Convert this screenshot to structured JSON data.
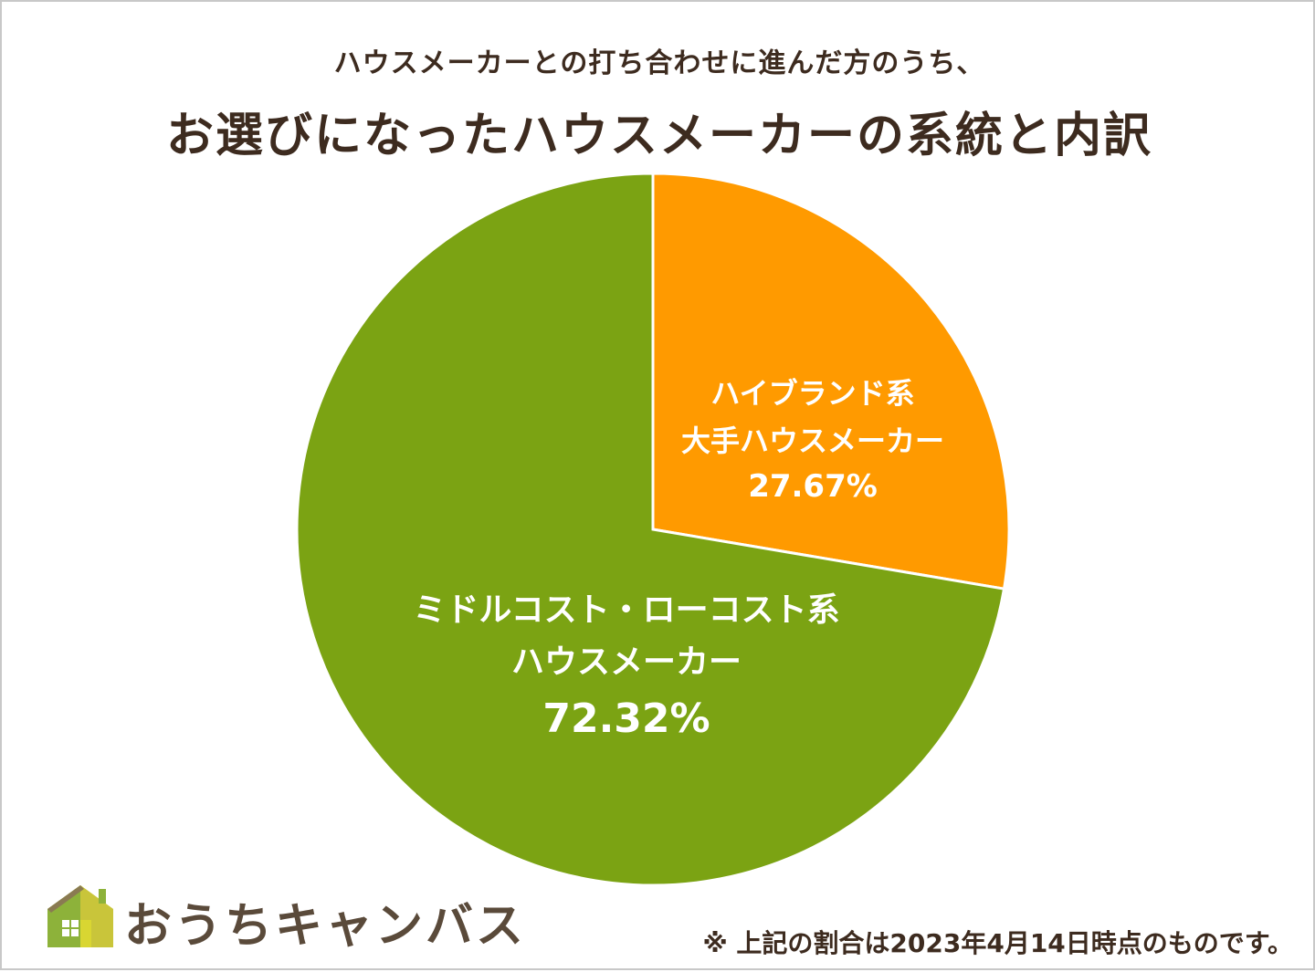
{
  "header": {
    "subtitle": "ハウスメーカーとの打ち合わせに進んだ方のうち、",
    "title": "お選びになったハウスメーカーの系統と内訳"
  },
  "chart_data": {
    "type": "pie",
    "title": "お選びになったハウスメーカーの系統と内訳",
    "subtitle": "ハウスメーカーとの打ち合わせに進んだ方のうち、",
    "slices": [
      {
        "label_lines": [
          "ハイブランド系",
          "大手ハウスメーカー"
        ],
        "percent_label": "27.67%",
        "value": 27.67,
        "color": "#ff9a00"
      },
      {
        "label_lines": [
          "ミドルコスト・ローコスト系",
          "ハウスメーカー"
        ],
        "percent_label": "72.32%",
        "value": 72.32,
        "color": "#7ba313"
      }
    ],
    "start": "12 o'clock",
    "direction": "clockwise",
    "legend": "none"
  },
  "footer": {
    "logo_text": "おうちキャンバス",
    "note": "※ 上記の割合は2023年4月14日時点のものです。"
  },
  "colors": {
    "title_text": "#3d2b1f",
    "logo_green": "#8db23a",
    "logo_yellow": "#d9d632",
    "logo_brown": "#8a7a52"
  }
}
